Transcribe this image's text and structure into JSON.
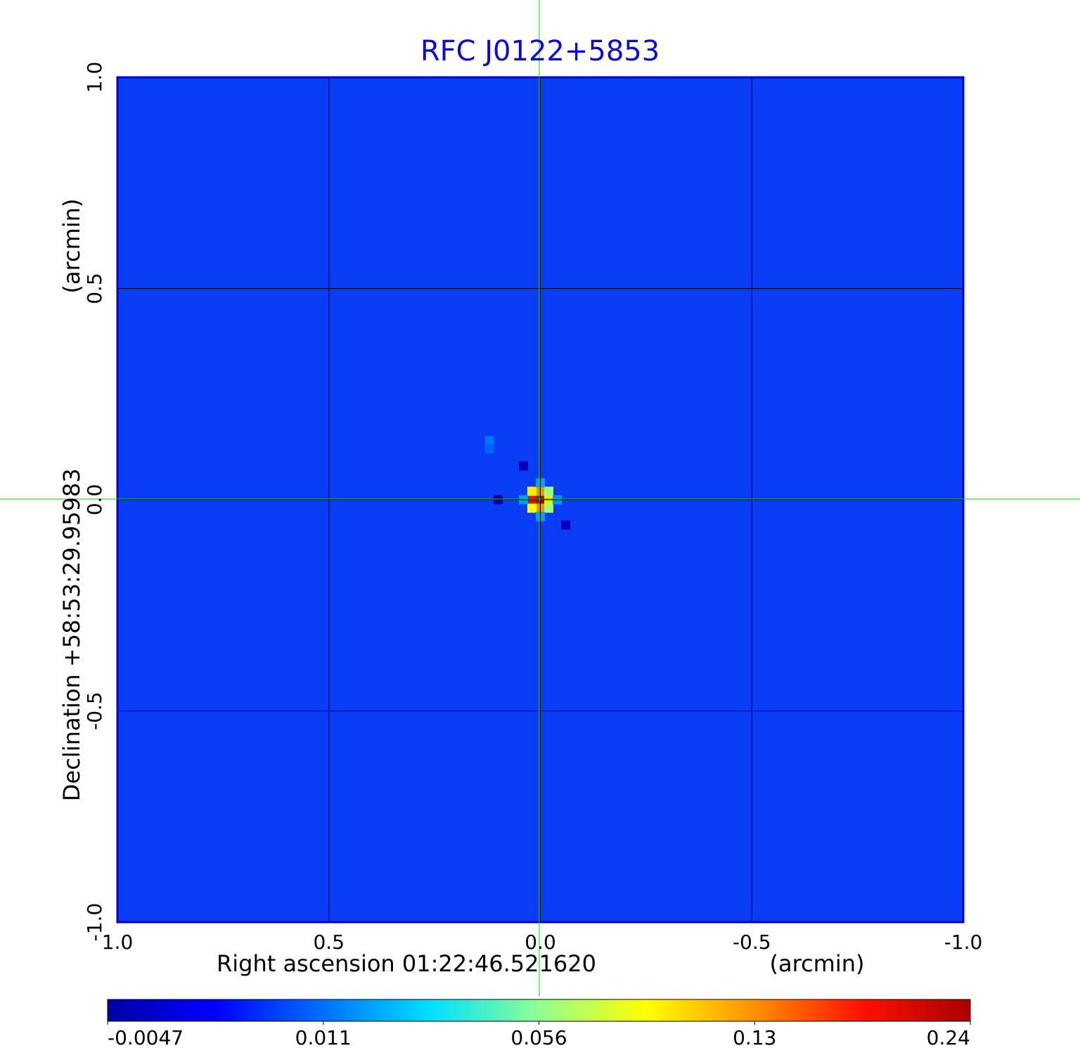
{
  "chart_data": {
    "type": "heatmap",
    "title": "RFC J0122+5853",
    "x_label": "Right ascension  01:22:46.521620",
    "x_unit": "(arcmin)",
    "y_label": "Declination  +58:53:29.95983",
    "y_unit": "(arcmin)",
    "xlim": [
      1,
      -1
    ],
    "ylim": [
      -1,
      1
    ],
    "xticks": [
      {
        "value": 1,
        "label": "1.0"
      },
      0.5,
      {
        "value": 0,
        "label": "0.0"
      },
      -0.5,
      {
        "value": -1,
        "label": "-1.0"
      }
    ],
    "yticks": [
      {
        "value": -1,
        "label": "-1.0"
      },
      -0.5,
      {
        "value": 0,
        "label": "0.0"
      },
      0.5,
      {
        "value": 1,
        "label": "1.0"
      }
    ],
    "grid": true,
    "x": [
      0,
      0.02,
      0,
      0,
      0.02,
      -0.02,
      0.02,
      -0.02,
      -0.02,
      0.04,
      -0.04,
      0,
      0,
      0.1,
      0.12,
      0.12,
      0.04,
      -0.06
    ],
    "y": [
      0,
      0,
      0.02,
      -0.02,
      0.02,
      0,
      -0.02,
      0.02,
      -0.02,
      0,
      0,
      0.04,
      -0.04,
      0,
      0.14,
      0.12,
      0.08,
      -0.06
    ],
    "values": [
      0.24,
      0.2,
      0.13,
      0.13,
      0.1,
      0.1,
      0.09,
      0.06,
      0.06,
      0.02,
      0.018,
      0.02,
      0.02,
      -0.0047,
      0.012,
      0.01,
      -0.003,
      -0.003
    ],
    "colorbar_ticks": [
      -0.0047,
      0.011,
      0.056,
      0.13,
      0.24
    ],
    "colormap": [
      "#0000a8",
      "#0000ff",
      "#0070ff",
      "#00e0ff",
      "#90ff90",
      "#ffff00",
      "#ff9000",
      "#ff1000",
      "#a80000"
    ]
  }
}
